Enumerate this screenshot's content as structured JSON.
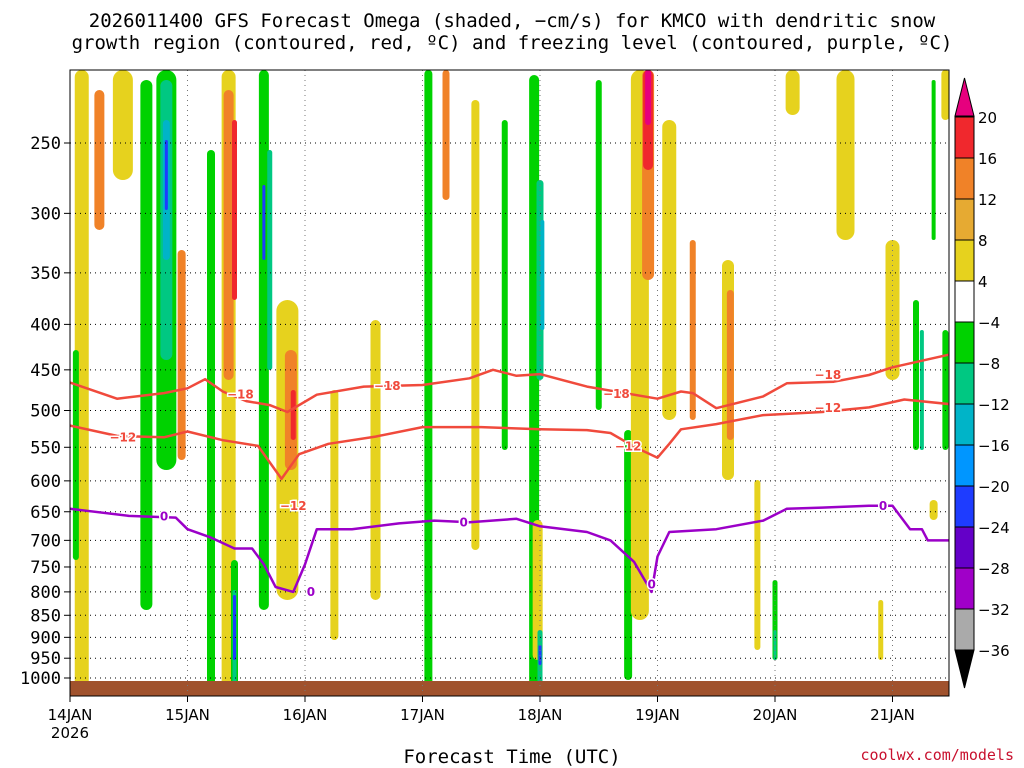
{
  "title_line1": "2026011400 GFS Forecast Omega (shaded, −cm/s) for KMCO with dendritic snow",
  "title_line2": "growth region (contoured, red, ºC) and freezing level (contoured, purple, ºC)",
  "xlabel": "Forecast Time (UTC)",
  "credit": "coolwx.com/models",
  "colors": {
    "contour_red": "#f04a3c",
    "contour_purple": "#9b00c8",
    "terrain": "#a0522d",
    "credit": "#c8102e"
  },
  "chart_data": {
    "type": "heatmap",
    "x_ticks": [
      "14JAN",
      "15JAN",
      "16JAN",
      "17JAN",
      "18JAN",
      "19JAN",
      "20JAN",
      "21JAN"
    ],
    "x_year": "2026",
    "y_ticks": [
      250,
      300,
      350,
      400,
      450,
      500,
      550,
      600,
      650,
      700,
      750,
      800,
      850,
      900,
      950,
      1000
    ],
    "y_scale": "log-pressure",
    "grid": true,
    "colorbar": {
      "labels": [
        "20",
        "16",
        "12",
        "8",
        "4",
        "−4",
        "−8",
        "−12",
        "−16",
        "−20",
        "−24",
        "−28",
        "−32",
        "−36"
      ],
      "colors": [
        "#e6007e",
        "#f0282d",
        "#f08228",
        "#e6aa32",
        "#e6d21e",
        "#ffffff",
        "#00d200",
        "#00c882",
        "#00b4c8",
        "#0096ff",
        "#1e3cff",
        "#6400c8",
        "#a000c8",
        "#aaaaaa",
        "#000000"
      ]
    },
    "contours": [
      {
        "label": "−18",
        "color": "red",
        "points": [
          [
            14.0,
            465
          ],
          [
            14.4,
            485
          ],
          [
            14.8,
            478
          ],
          [
            15.0,
            472
          ],
          [
            15.15,
            461
          ],
          [
            15.3,
            476
          ],
          [
            15.5,
            488
          ],
          [
            15.7,
            493
          ],
          [
            15.85,
            502
          ],
          [
            16.1,
            480
          ],
          [
            16.5,
            470
          ],
          [
            17.0,
            468
          ],
          [
            17.4,
            460
          ],
          [
            17.6,
            450
          ],
          [
            17.8,
            457
          ],
          [
            18.0,
            455
          ],
          [
            18.4,
            470
          ],
          [
            18.8,
            480
          ],
          [
            19.0,
            485
          ],
          [
            19.2,
            476
          ],
          [
            19.3,
            478
          ],
          [
            19.5,
            497
          ],
          [
            19.9,
            482
          ],
          [
            20.1,
            466
          ],
          [
            20.5,
            464
          ],
          [
            20.8,
            456
          ],
          [
            21.0,
            447
          ],
          [
            21.5,
            432
          ],
          [
            21.5,
            429
          ]
        ],
        "label_at": [
          [
            15.45,
            480
          ],
          [
            16.7,
            469
          ],
          [
            18.65,
            479
          ],
          [
            20.45,
            456
          ]
        ]
      },
      {
        "label": "−12",
        "color": "red",
        "points": [
          [
            14.0,
            520
          ],
          [
            14.4,
            534
          ],
          [
            14.8,
            536
          ],
          [
            15.0,
            528
          ],
          [
            15.3,
            540
          ],
          [
            15.6,
            548
          ],
          [
            15.8,
            597
          ],
          [
            15.95,
            560
          ],
          [
            16.2,
            545
          ],
          [
            16.6,
            535
          ],
          [
            17.0,
            522
          ],
          [
            17.5,
            522
          ],
          [
            18.0,
            525
          ],
          [
            18.4,
            526
          ],
          [
            18.6,
            530
          ],
          [
            18.8,
            549
          ],
          [
            19.0,
            565
          ],
          [
            19.1,
            545
          ],
          [
            19.2,
            525
          ],
          [
            19.5,
            518
          ],
          [
            19.9,
            506
          ],
          [
            20.4,
            502
          ],
          [
            20.8,
            496
          ],
          [
            21.1,
            486
          ],
          [
            21.5,
            492
          ]
        ],
        "label_at": [
          [
            14.45,
            536
          ],
          [
            15.9,
            640
          ],
          [
            18.75,
            549
          ],
          [
            20.45,
            497
          ]
        ]
      },
      {
        "label": "0",
        "color": "purple",
        "points": [
          [
            14.0,
            645
          ],
          [
            14.5,
            657
          ],
          [
            14.9,
            660
          ],
          [
            15.0,
            680
          ],
          [
            15.2,
            695
          ],
          [
            15.4,
            715
          ],
          [
            15.55,
            715
          ],
          [
            15.65,
            745
          ],
          [
            15.75,
            790
          ],
          [
            15.9,
            800
          ],
          [
            16.0,
            745
          ],
          [
            16.1,
            680
          ],
          [
            16.4,
            680
          ],
          [
            16.8,
            670
          ],
          [
            17.1,
            665
          ],
          [
            17.4,
            668
          ],
          [
            17.8,
            662
          ],
          [
            18.0,
            675
          ],
          [
            18.4,
            685
          ],
          [
            18.6,
            700
          ],
          [
            18.8,
            740
          ],
          [
            18.95,
            800
          ],
          [
            19.0,
            730
          ],
          [
            19.1,
            685
          ],
          [
            19.5,
            680
          ],
          [
            19.9,
            665
          ],
          [
            20.1,
            645
          ],
          [
            20.4,
            643
          ],
          [
            20.8,
            640
          ],
          [
            21.0,
            640
          ],
          [
            21.15,
            680
          ],
          [
            21.25,
            680
          ],
          [
            21.3,
            700
          ],
          [
            21.5,
            700
          ],
          [
            21.5,
            640
          ]
        ],
        "label_at": [
          [
            14.8,
            658
          ],
          [
            16.05,
            800
          ],
          [
            17.35,
            668
          ],
          [
            18.95,
            785
          ],
          [
            20.92,
            640
          ]
        ]
      }
    ]
  }
}
